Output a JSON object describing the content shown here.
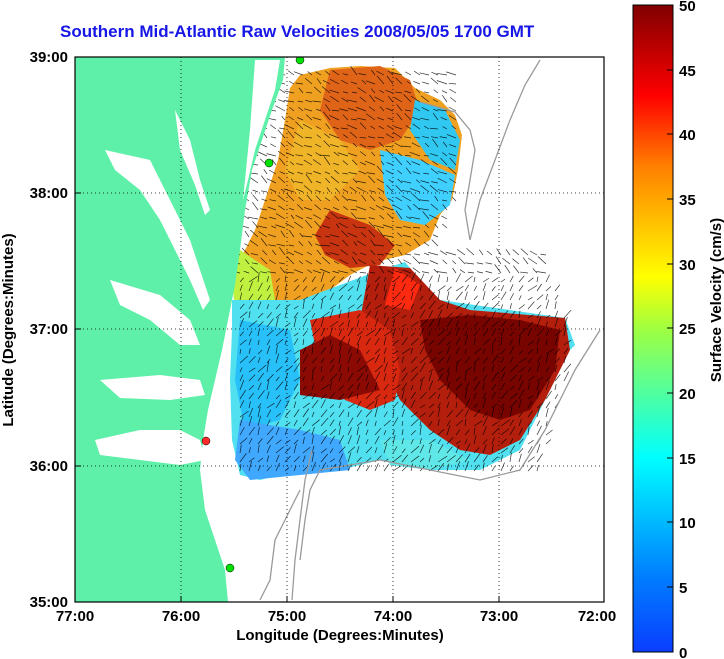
{
  "title": "Southern Mid-Atlantic Raw Velocities 2008/05/05 1700 GMT",
  "map": {
    "xlabel": "Longitude (Degrees:Minutes)",
    "ylabel": "Latitude (Degrees:Minutes)",
    "lon_range": [
      -77,
      -72
    ],
    "lat_range": [
      35,
      39
    ],
    "x_ticks": [
      "77:00",
      "76:00",
      "75:00",
      "74:00",
      "73:00",
      "72:00"
    ],
    "y_ticks": [
      "39:00",
      "38:00",
      "37:00",
      "36:00",
      "35:00"
    ],
    "land_color": "#5ef0a8",
    "grid": "dotted",
    "vector_color": "#000000",
    "station_markers": [
      {
        "color": "#00e000",
        "lon": -74.9,
        "lat": 38.99
      },
      {
        "color": "#00e000",
        "lon": -75.1,
        "lat": 38.25
      },
      {
        "color": "#ff2a2a",
        "lon": -75.72,
        "lat": 36.18
      },
      {
        "color": "#00e000",
        "lon": -75.48,
        "lat": 35.3
      }
    ]
  },
  "colorbar": {
    "label": "Surface Velocity (cm/s)",
    "range": [
      0,
      50
    ],
    "ticks": [
      "0",
      "5",
      "10",
      "15",
      "20",
      "25",
      "30",
      "35",
      "40",
      "45",
      "50"
    ],
    "colormap": "jet",
    "colors": [
      "#0000ff",
      "#00ffff",
      "#ffff00",
      "#ff0000",
      "#800000"
    ]
  }
}
